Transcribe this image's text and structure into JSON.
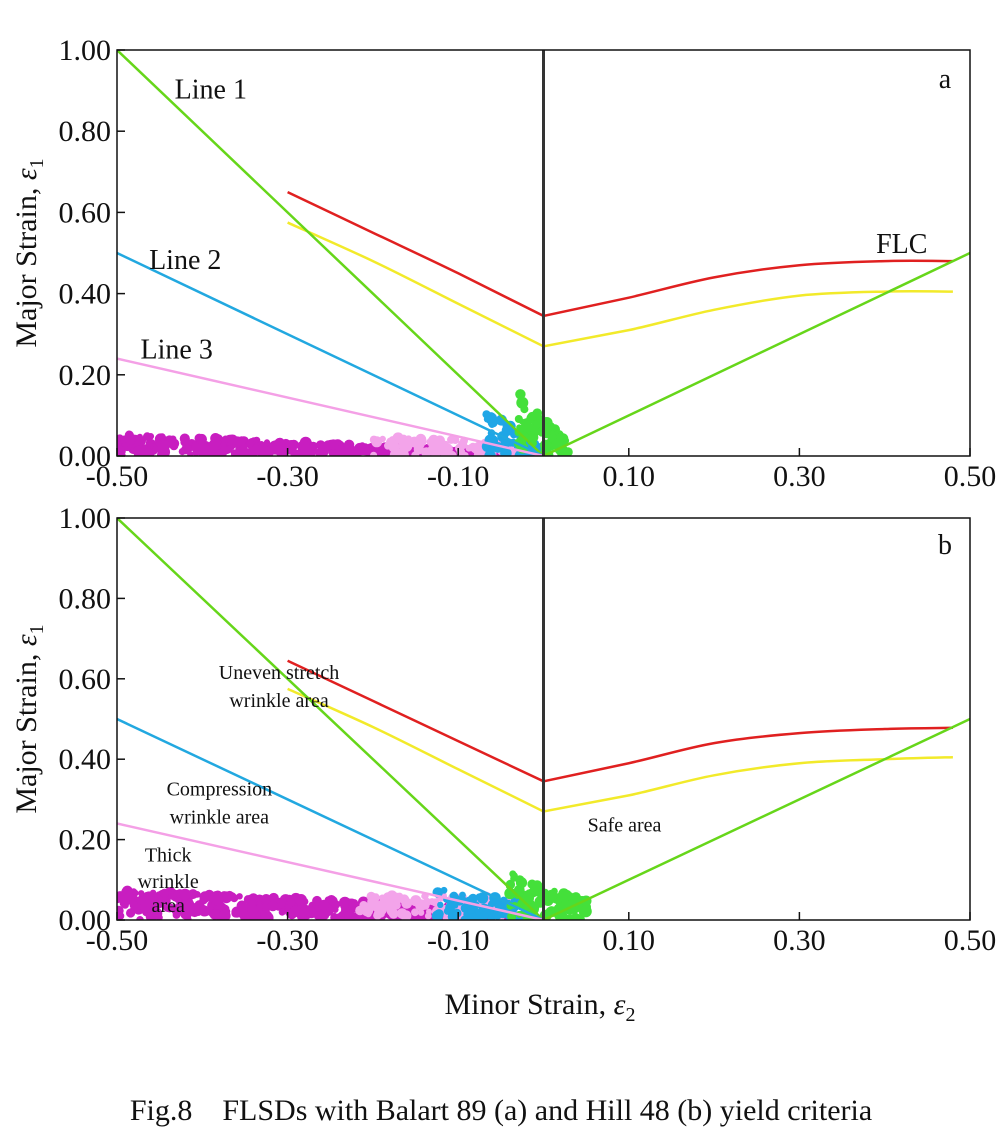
{
  "chart_data": [
    {
      "type": "line",
      "panel": "a",
      "ylabel_text": "Major Strain, ",
      "ylabel_symbol": "ε",
      "ylabel_sub": "1",
      "xlim": [
        -0.5,
        0.5
      ],
      "ylim": [
        0,
        1.0
      ],
      "x_ticks": [
        "-0.50",
        "-0.30",
        "-0.10",
        "0.10",
        "0.30",
        "0.50"
      ],
      "y_ticks": [
        "0.00",
        "0.20",
        "0.40",
        "0.60",
        "0.80",
        "1.00"
      ],
      "x_tick_values": [
        -0.5,
        -0.3,
        -0.1,
        0.1,
        0.3,
        0.5
      ],
      "y_tick_values": [
        0,
        0.2,
        0.4,
        0.6,
        0.8,
        1.0
      ],
      "annotations": [
        {
          "text": "Line 1",
          "x": -0.39,
          "y": 0.88
        },
        {
          "text": "Line 2",
          "x": -0.42,
          "y": 0.46
        },
        {
          "text": "Line 3",
          "x": -0.43,
          "y": 0.24
        },
        {
          "text": "FLC",
          "x": 0.42,
          "y": 0.5
        }
      ],
      "series": [
        {
          "color": "#e02020",
          "x": [
            -0.3,
            -0.2,
            -0.1,
            0.0,
            0.1,
            0.2,
            0.3,
            0.4,
            0.48
          ],
          "y": [
            0.65,
            0.55,
            0.45,
            0.345,
            0.39,
            0.44,
            0.47,
            0.48,
            0.48
          ]
        },
        {
          "color": "#f2ea2a",
          "x": [
            -0.3,
            -0.2,
            -0.1,
            0.0,
            0.1,
            0.2,
            0.3,
            0.4,
            0.48
          ],
          "y": [
            0.575,
            0.48,
            0.375,
            0.27,
            0.31,
            0.36,
            0.395,
            0.405,
            0.405
          ]
        },
        {
          "color": "#66d61a",
          "x": [
            -0.5,
            0.0,
            0.5
          ],
          "y": [
            1.0,
            0.0,
            0.5
          ]
        },
        {
          "color": "#22a8e0",
          "x": [
            -0.5,
            0.0
          ],
          "y": [
            0.5,
            0.0
          ]
        },
        {
          "color": "#f4a0e6",
          "x": [
            -0.5,
            0.0
          ],
          "y": [
            0.24,
            0.0
          ]
        },
        {
          "color": "#333333",
          "x": [
            0.0,
            0.0
          ],
          "y": [
            0.0,
            1.0
          ]
        }
      ],
      "scatter_clouds": [
        {
          "color": "#c81ec0",
          "x_range": [
            -0.5,
            -0.04
          ],
          "y_max_at_left": 0.055,
          "y_max_at_right": 0.01,
          "count": 420
        },
        {
          "color": "#f3a4ea",
          "x_range": [
            -0.2,
            -0.01
          ],
          "y_max_at_left": 0.05,
          "y_max_at_right": 0.03,
          "count": 90
        },
        {
          "color": "#1fa6e6",
          "x_range": [
            -0.07,
            0.0
          ],
          "y_max_at_left": 0.12,
          "y_max_at_right": 0.02,
          "count": 70
        },
        {
          "color": "#44e03a",
          "x_range": [
            -0.03,
            0.03
          ],
          "y_max_at_left": 0.16,
          "y_max_at_right": 0.03,
          "count": 90
        }
      ]
    },
    {
      "type": "line",
      "panel": "b",
      "ylabel_text": "Major Strain, ",
      "ylabel_symbol": "ε",
      "ylabel_sub": "1",
      "xlabel_text": "Minor Strain, ",
      "xlabel_symbol": "ε",
      "xlabel_sub": "2",
      "xlim": [
        -0.5,
        0.5
      ],
      "ylim": [
        0,
        1.0
      ],
      "x_ticks": [
        "-0.50",
        "-0.30",
        "-0.10",
        "0.10",
        "0.30",
        "0.50"
      ],
      "y_ticks": [
        "0.00",
        "0.20",
        "0.40",
        "0.60",
        "0.80",
        "1.00"
      ],
      "x_tick_values": [
        -0.5,
        -0.3,
        -0.1,
        0.1,
        0.3,
        0.5
      ],
      "y_tick_values": [
        0,
        0.2,
        0.4,
        0.6,
        0.8,
        1.0
      ],
      "annotations": [
        {
          "text": "Uneven stretch",
          "x": -0.31,
          "y": 0.6
        },
        {
          "text": "wrinkle area",
          "x": -0.31,
          "y": 0.53
        },
        {
          "text": "Compression",
          "x": -0.38,
          "y": 0.31
        },
        {
          "text": "wrinkle area",
          "x": -0.38,
          "y": 0.24
        },
        {
          "text": "Thick",
          "x": -0.44,
          "y": 0.145
        },
        {
          "text": "wrinkle",
          "x": -0.44,
          "y": 0.08
        },
        {
          "text": "area",
          "x": -0.44,
          "y": 0.02
        },
        {
          "text": "Safe area",
          "x": 0.095,
          "y": 0.22
        }
      ],
      "series": [
        {
          "color": "#e02020",
          "x": [
            -0.3,
            -0.2,
            -0.1,
            0.0,
            0.1,
            0.2,
            0.3,
            0.4,
            0.48
          ],
          "y": [
            0.645,
            0.545,
            0.445,
            0.345,
            0.39,
            0.44,
            0.465,
            0.475,
            0.478
          ]
        },
        {
          "color": "#f2ea2a",
          "x": [
            -0.3,
            -0.2,
            -0.1,
            0.0,
            0.1,
            0.2,
            0.3,
            0.4,
            0.48
          ],
          "y": [
            0.575,
            0.48,
            0.375,
            0.27,
            0.31,
            0.36,
            0.39,
            0.4,
            0.405
          ]
        },
        {
          "color": "#66d61a",
          "x": [
            -0.5,
            0.0,
            0.5
          ],
          "y": [
            1.0,
            0.0,
            0.5
          ]
        },
        {
          "color": "#22a8e0",
          "x": [
            -0.5,
            0.0
          ],
          "y": [
            0.5,
            0.0
          ]
        },
        {
          "color": "#f4a0e6",
          "x": [
            -0.5,
            0.0
          ],
          "y": [
            0.24,
            0.0
          ]
        },
        {
          "color": "#333333",
          "x": [
            0.0,
            0.0
          ],
          "y": [
            0.0,
            1.0
          ]
        }
      ],
      "scatter_clouds": [
        {
          "color": "#c81ec0",
          "x_range": [
            -0.5,
            -0.04
          ],
          "y_max_at_left": 0.075,
          "y_max_at_right": 0.03,
          "count": 450
        },
        {
          "color": "#f3a4ea",
          "x_range": [
            -0.22,
            -0.03
          ],
          "y_max_at_left": 0.06,
          "y_max_at_right": 0.06,
          "count": 100
        },
        {
          "color": "#1fa6e6",
          "x_range": [
            -0.13,
            -0.01
          ],
          "y_max_at_left": 0.08,
          "y_max_at_right": 0.04,
          "count": 80
        },
        {
          "color": "#44e03a",
          "x_range": [
            -0.04,
            0.05
          ],
          "y_max_at_left": 0.12,
          "y_max_at_right": 0.05,
          "count": 110
        }
      ]
    }
  ],
  "panel_labels": {
    "a": "a",
    "b": "b"
  },
  "caption": "Fig.8    FLSDs with Balart 89 (a) and Hill 48 (b) yield criteria"
}
